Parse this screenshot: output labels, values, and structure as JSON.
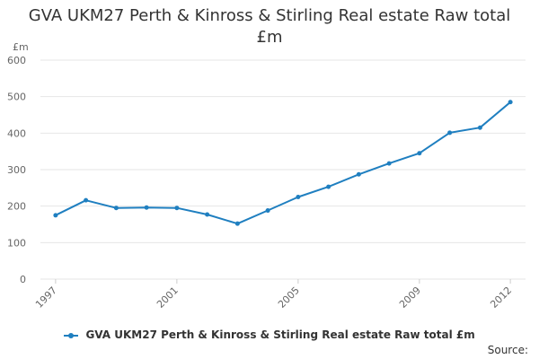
{
  "chart_data": {
    "type": "line",
    "title": "GVA UKM27 Perth & Kinross & Stirling Real estate Raw total £m",
    "ylabel": "£m",
    "xlabel": "",
    "ylim": [
      0,
      600
    ],
    "yticks": [
      0,
      100,
      200,
      300,
      400,
      500,
      600
    ],
    "xticks": [
      1997,
      2001,
      2005,
      2009,
      2012
    ],
    "grid": true,
    "legend_position": "bottom",
    "series": [
      {
        "name": "GVA UKM27 Perth & Kinross & Stirling Real estate Raw total £m",
        "color": "#1f7fc0",
        "x": [
          1997,
          1998,
          1999,
          2000,
          2001,
          2002,
          2003,
          2004,
          2005,
          2006,
          2007,
          2008,
          2009,
          2010,
          2011,
          2012
        ],
        "y": [
          175,
          216,
          195,
          196,
          195,
          177,
          152,
          188,
          225,
          253,
          287,
          317,
          345,
          401,
          415,
          485
        ]
      }
    ]
  },
  "source_label": "Source:"
}
